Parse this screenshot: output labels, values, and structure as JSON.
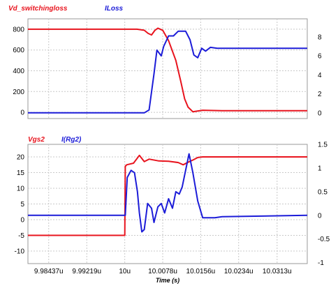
{
  "chart_data": [
    {
      "type": "line",
      "legend_placement": "top-left",
      "grid": true,
      "x_ticks": [
        "9.98437u",
        "9.99219u",
        "10u",
        "10.0078u",
        "10.0156u",
        "10.0234u",
        "10.0313u"
      ],
      "x_tick_values": [
        9.98437,
        9.99219,
        10.0,
        10.0078,
        10.0156,
        10.0234,
        10.0313
      ],
      "xlim": [
        9.9801,
        10.0375
      ],
      "ylim_left": [
        -60,
        900
      ],
      "ylim_right": [
        -0.6,
        9.9
      ],
      "y_ticks_left": [
        "0",
        "200",
        "400",
        "600",
        "800"
      ],
      "y_tick_values_left": [
        0,
        200,
        400,
        600,
        800
      ],
      "y_ticks_right": [
        "0",
        "2",
        "4",
        "6",
        "8"
      ],
      "y_tick_values_right": [
        0,
        2,
        4,
        6,
        8
      ],
      "series": [
        {
          "name": "Vd_switchingloss",
          "color": "#e8141e",
          "axis": "left",
          "x": [
            9.9801,
            10.0025,
            10.004,
            10.0048,
            10.0055,
            10.0062,
            10.0068,
            10.0078,
            10.009,
            10.0105,
            10.0115,
            10.0123,
            10.013,
            10.014,
            10.016,
            10.02,
            10.0375
          ],
          "y": [
            800,
            800,
            790,
            760,
            745,
            790,
            810,
            790,
            690,
            500,
            300,
            130,
            50,
            5,
            20,
            15,
            15
          ]
        },
        {
          "name": "ILoss",
          "color": "#1c1cd8",
          "axis": "right",
          "x": [
            9.9801,
            10.004,
            10.005,
            10.006,
            10.0066,
            10.0075,
            10.008,
            10.009,
            10.01,
            10.011,
            10.0116,
            10.0125,
            10.0134,
            10.0142,
            10.015,
            10.0158,
            10.0166,
            10.0176,
            10.019,
            10.022,
            10.0375
          ],
          "y": [
            0,
            0,
            0.3,
            4.1,
            6.6,
            6.0,
            7.0,
            8.1,
            8.1,
            8.6,
            8.6,
            8.6,
            7.7,
            6.1,
            5.8,
            6.8,
            6.5,
            6.9,
            6.8,
            6.8,
            6.8
          ]
        }
      ]
    },
    {
      "type": "line",
      "legend_placement": "top-left",
      "grid": true,
      "xlabel": "Time (s)",
      "x_ticks": [
        "9.98437u",
        "9.99219u",
        "10u",
        "10.0078u",
        "10.0156u",
        "10.0234u",
        "10.0313u"
      ],
      "x_tick_values": [
        9.98437,
        9.99219,
        10.0,
        10.0078,
        10.0156,
        10.0234,
        10.0313
      ],
      "xlim": [
        9.9801,
        10.0375
      ],
      "ylim_left": [
        -14,
        24
      ],
      "ylim_right": [
        -1.02,
        1.5
      ],
      "y_ticks_left": [
        "-10",
        "-5",
        "0",
        "5",
        "10",
        "15",
        "20"
      ],
      "y_tick_values_left": [
        -10,
        -5,
        0,
        5,
        10,
        15,
        20
      ],
      "y_ticks_right": [
        "-1",
        "-0.5",
        "0",
        "0.5",
        "1",
        "1.5"
      ],
      "y_tick_values_right": [
        -1,
        -0.5,
        0,
        0.5,
        1,
        1.5
      ],
      "series": [
        {
          "name": "Vgs2",
          "color": "#e8141e",
          "axis": "left",
          "x": [
            9.9801,
            10.0,
            10.0001,
            10.0004,
            10.0018,
            10.003,
            10.004,
            10.005,
            10.007,
            10.009,
            10.011,
            10.012,
            10.013,
            10.014,
            10.015,
            10.016,
            10.02,
            10.0375
          ],
          "y": [
            -5,
            -5,
            17,
            17.5,
            18,
            20.5,
            18.5,
            19.3,
            18.7,
            18.6,
            18.2,
            17.5,
            18.3,
            19.0,
            19.8,
            20,
            20,
            20
          ]
        },
        {
          "name": "I(Rg2)",
          "color": "#1c1cd8",
          "axis": "right",
          "x": [
            9.9801,
            10.0001,
            10.0005,
            10.0013,
            10.002,
            10.0026,
            10.003,
            10.0035,
            10.004,
            10.0047,
            10.0055,
            10.006,
            10.0068,
            10.0075,
            10.0082,
            10.009,
            10.0098,
            10.0105,
            10.0112,
            10.0118,
            10.0125,
            10.0132,
            10.014,
            10.015,
            10.016,
            10.017,
            10.0185,
            10.02,
            10.0375
          ],
          "y": [
            0,
            0,
            0.8,
            0.95,
            0.9,
            0.5,
            0.05,
            -0.35,
            -0.3,
            0.25,
            0.15,
            -0.15,
            0.18,
            0.25,
            0.05,
            0.35,
            0.15,
            0.5,
            0.45,
            0.6,
            0.95,
            1.3,
            0.9,
            0.3,
            -0.05,
            -0.05,
            -0.05,
            -0.03,
            0
          ]
        }
      ]
    }
  ]
}
